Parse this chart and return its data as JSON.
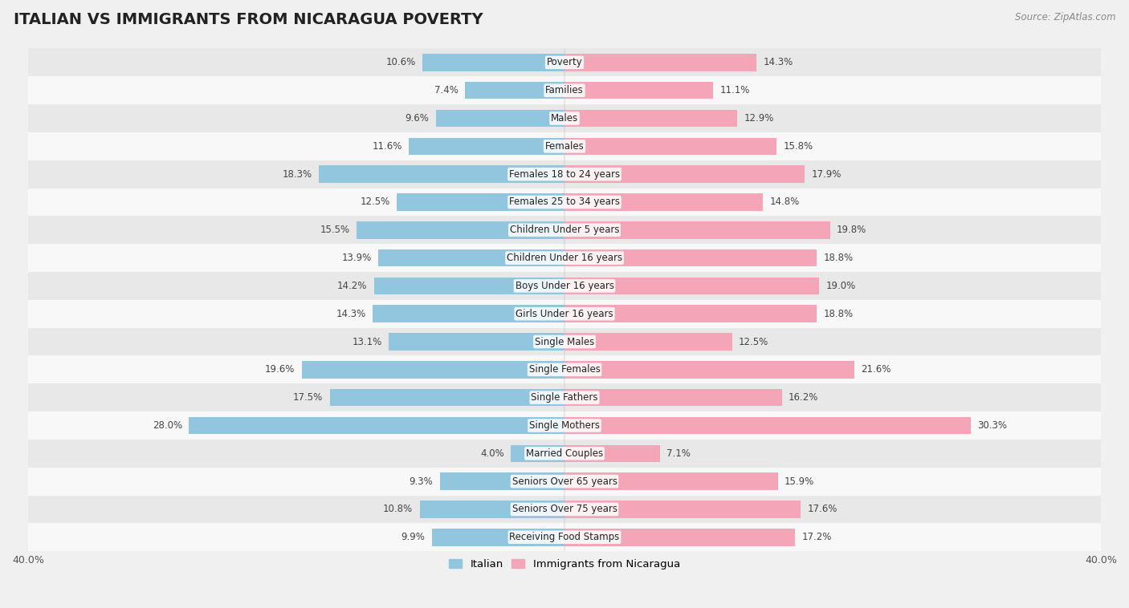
{
  "title": "ITALIAN VS IMMIGRANTS FROM NICARAGUA POVERTY",
  "source": "Source: ZipAtlas.com",
  "categories": [
    "Poverty",
    "Families",
    "Males",
    "Females",
    "Females 18 to 24 years",
    "Females 25 to 34 years",
    "Children Under 5 years",
    "Children Under 16 years",
    "Boys Under 16 years",
    "Girls Under 16 years",
    "Single Males",
    "Single Females",
    "Single Fathers",
    "Single Mothers",
    "Married Couples",
    "Seniors Over 65 years",
    "Seniors Over 75 years",
    "Receiving Food Stamps"
  ],
  "italian_values": [
    10.6,
    7.4,
    9.6,
    11.6,
    18.3,
    12.5,
    15.5,
    13.9,
    14.2,
    14.3,
    13.1,
    19.6,
    17.5,
    28.0,
    4.0,
    9.3,
    10.8,
    9.9
  ],
  "nicaragua_values": [
    14.3,
    11.1,
    12.9,
    15.8,
    17.9,
    14.8,
    19.8,
    18.8,
    19.0,
    18.8,
    12.5,
    21.6,
    16.2,
    30.3,
    7.1,
    15.9,
    17.6,
    17.2
  ],
  "italian_color": "#92c5de",
  "nicaragua_color": "#f4a6b8",
  "italian_label": "Italian",
  "nicaragua_label": "Immigrants from Nicaragua",
  "xlim": [
    -40,
    40
  ],
  "bar_height": 0.62,
  "background_color": "#f0f0f0",
  "row_odd_color": "#e8e8e8",
  "row_even_color": "#f8f8f8",
  "title_fontsize": 14,
  "label_fontsize": 8.5,
  "value_fontsize": 8.5,
  "axis_label_fontsize": 9
}
